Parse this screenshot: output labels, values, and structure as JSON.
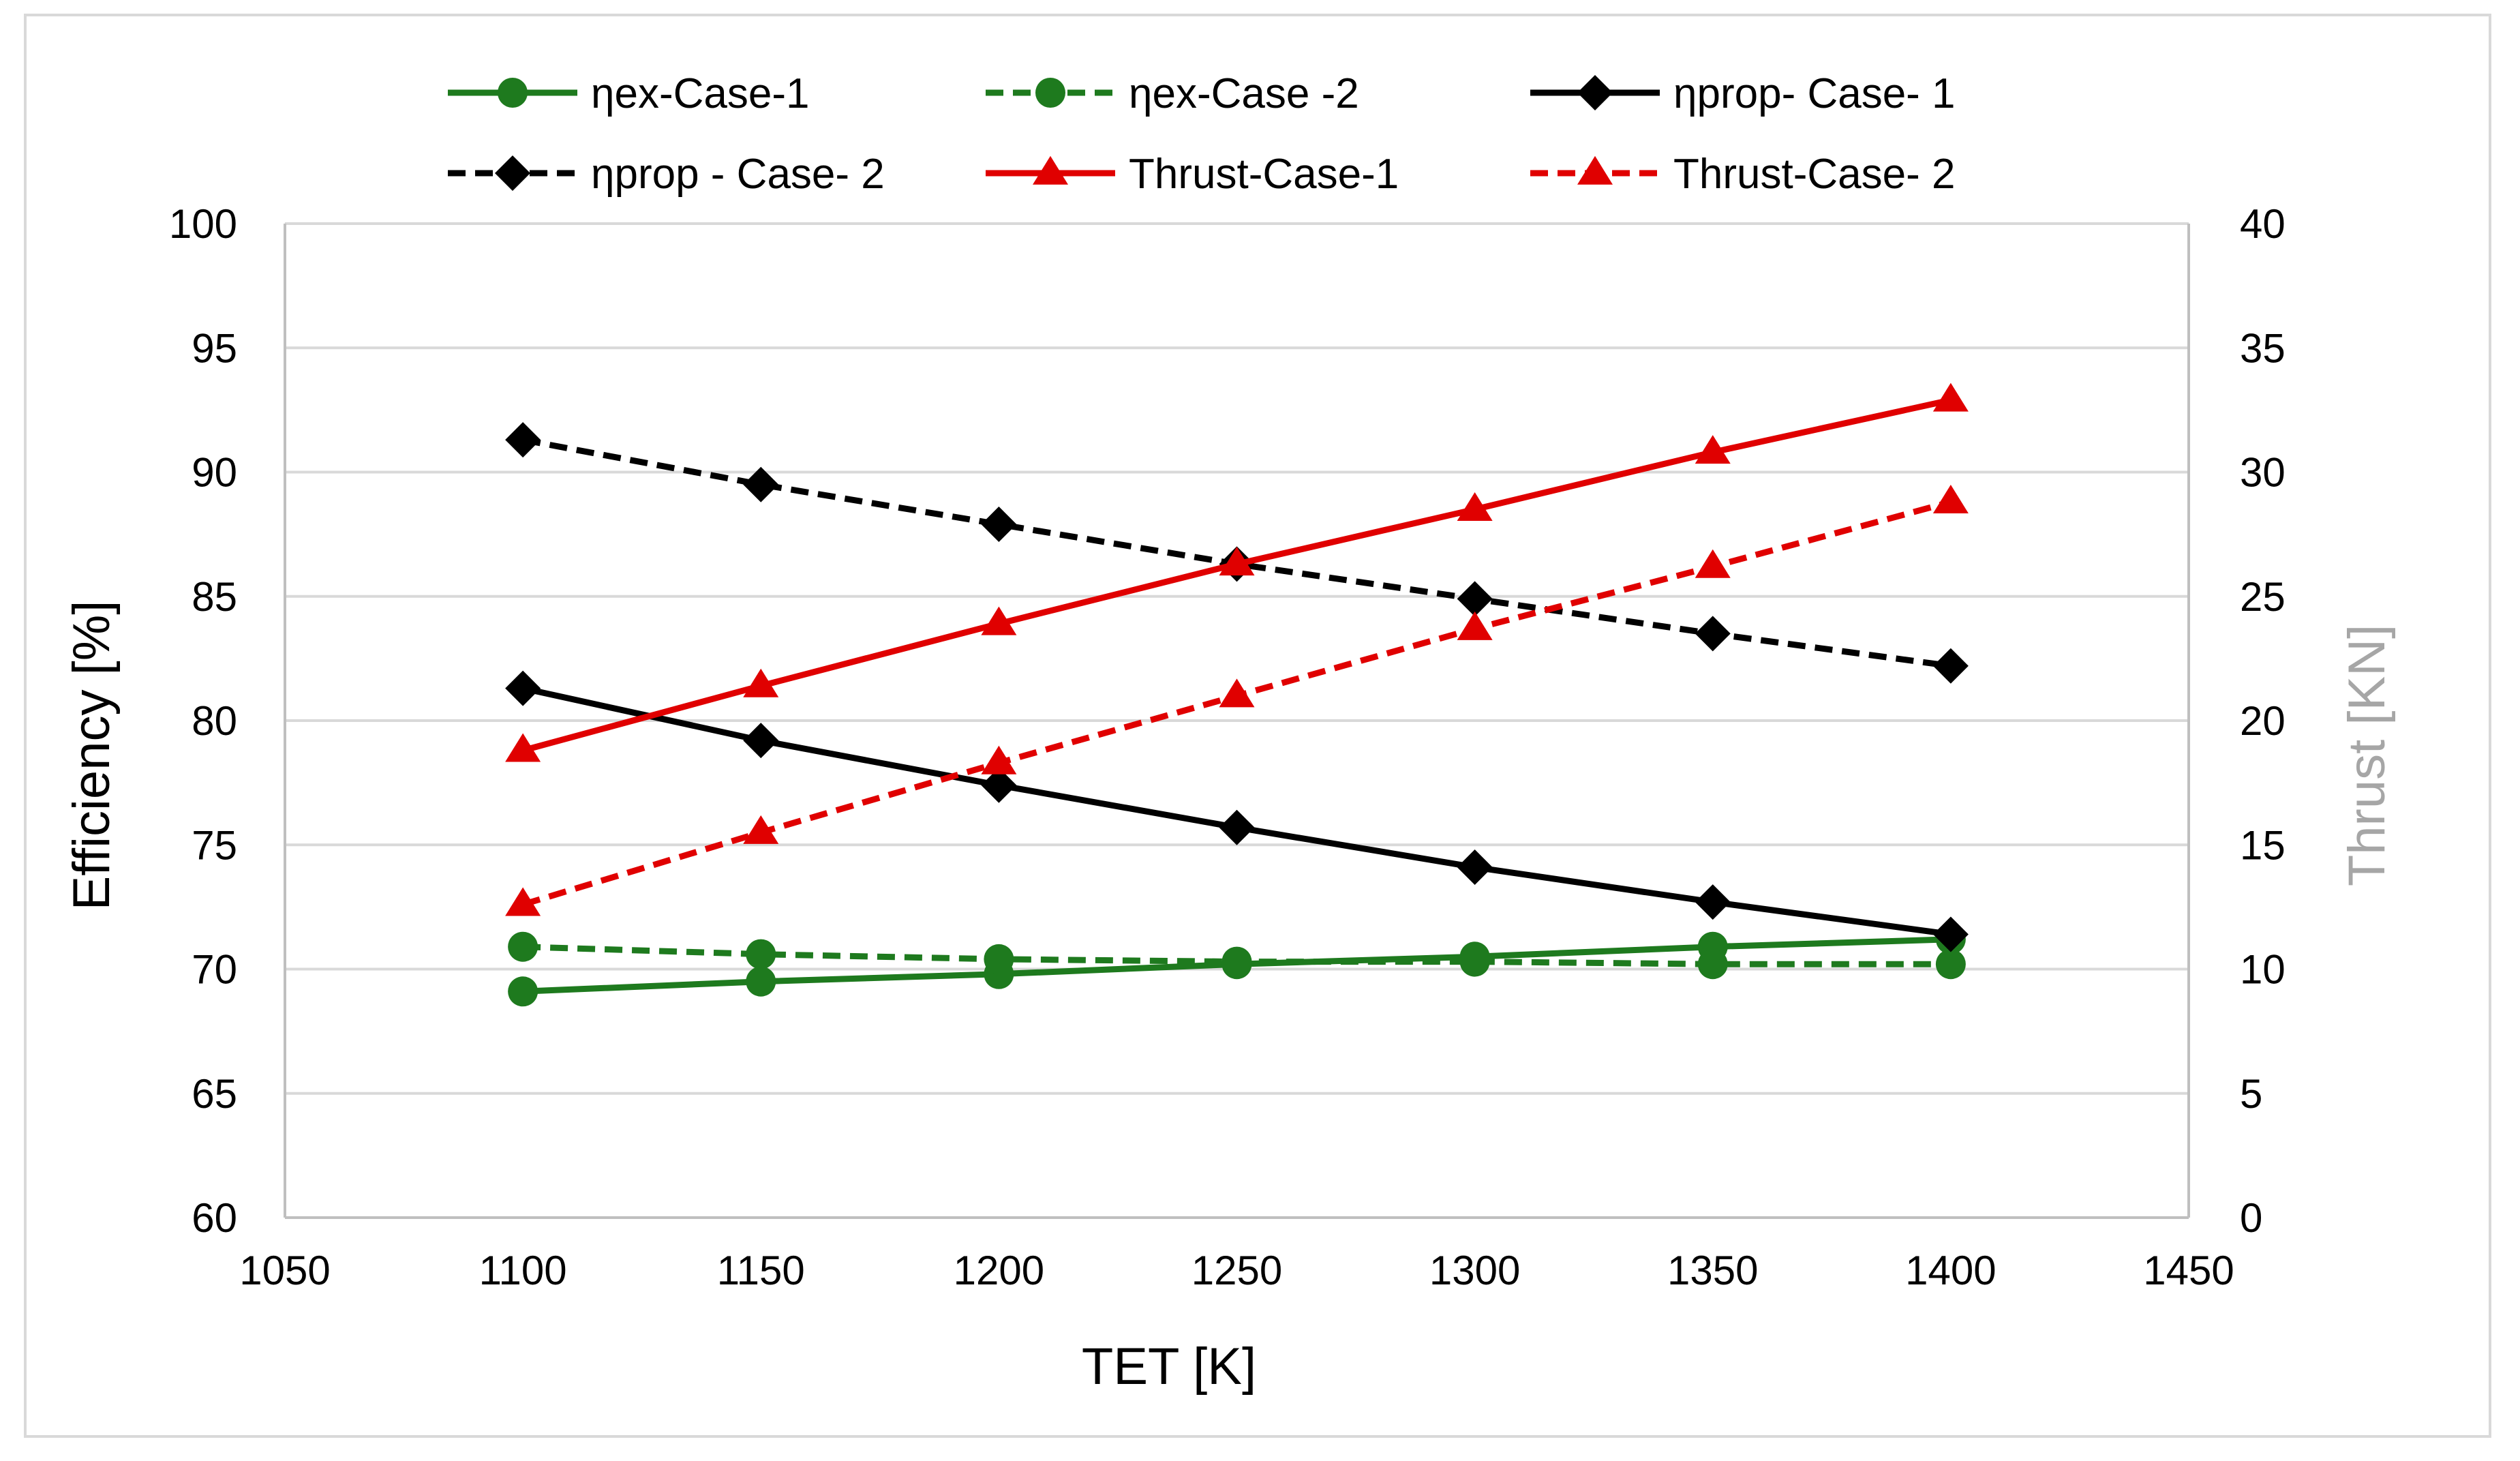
{
  "chart_data": {
    "type": "line",
    "title": "",
    "xlabel": "TET [K]",
    "ylabel": "Efficiency [%]",
    "y2label": "Thrust [KN]",
    "xlim": [
      1050,
      1450
    ],
    "ylim": [
      60,
      100
    ],
    "y2lim": [
      0,
      40
    ],
    "xticks": [
      1050,
      1100,
      1150,
      1200,
      1250,
      1300,
      1350,
      1400,
      1450
    ],
    "yticks": [
      60,
      65,
      70,
      75,
      80,
      85,
      90,
      95,
      100
    ],
    "y2ticks": [
      0,
      5,
      10,
      15,
      20,
      25,
      30,
      35,
      40
    ],
    "grid": true,
    "legend_position": "top",
    "x": [
      1100,
      1150,
      1200,
      1250,
      1300,
      1350,
      1400
    ],
    "series": [
      {
        "name": "ηex-Case-1",
        "axis": "left",
        "color": "#1e7a1e",
        "dash": "solid",
        "marker": "circle",
        "values": [
          69.1,
          69.5,
          69.8,
          70.2,
          70.5,
          70.9,
          71.2
        ]
      },
      {
        "name": "ηex-Case -2",
        "axis": "left",
        "color": "#1e7a1e",
        "dash": "dashed",
        "marker": "circle",
        "values": [
          70.9,
          70.6,
          70.4,
          70.3,
          70.3,
          70.2,
          70.2
        ]
      },
      {
        "name": "ηprop- Case- 1",
        "axis": "left",
        "color": "#000000",
        "dash": "solid",
        "marker": "diamond",
        "values": [
          81.3,
          79.2,
          77.4,
          75.7,
          74.1,
          72.7,
          71.4
        ]
      },
      {
        "name": "ηprop - Case- 2",
        "axis": "left",
        "color": "#000000",
        "dash": "dashed",
        "marker": "diamond",
        "values": [
          91.3,
          89.5,
          87.9,
          86.3,
          84.9,
          83.5,
          82.2
        ]
      },
      {
        "name": "Thrust-Case-1",
        "axis": "right",
        "color": "#e00000",
        "dash": "solid",
        "marker": "triangle",
        "values": [
          18.8,
          21.4,
          23.9,
          26.3,
          28.5,
          30.8,
          32.9
        ]
      },
      {
        "name": "Thrust-Case- 2",
        "axis": "right",
        "color": "#e00000",
        "dash": "dashed",
        "marker": "triangle",
        "values": [
          12.6,
          15.5,
          18.3,
          21.0,
          23.7,
          26.2,
          28.8
        ]
      }
    ]
  }
}
